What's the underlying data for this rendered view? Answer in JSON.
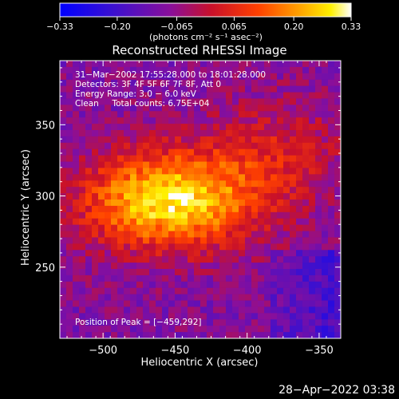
{
  "chart_data": {
    "type": "heatmap",
    "title": "Reconstructed RHESSI Image",
    "xlabel": "Heliocentric X (arcsec)",
    "ylabel": "Heliocentric Y (arcsec)",
    "xlim": [
      -530,
      -335
    ],
    "ylim": [
      200,
      395
    ],
    "xticks": [
      -500,
      -450,
      -400,
      -350
    ],
    "xtick_labels": [
      "−500",
      "−450",
      "−400",
      "−350"
    ],
    "yticks": [
      250,
      300,
      350
    ],
    "ytick_labels": [
      "250",
      "300",
      "350"
    ],
    "colorbar": {
      "min": -0.33,
      "max": 0.33,
      "ticks": [
        -0.33,
        -0.2,
        -0.065,
        0.065,
        0.2,
        0.33
      ],
      "tick_labels": [
        "−0.33",
        "−0.20",
        "−0.065",
        "0.065",
        "0.20",
        "0.33"
      ],
      "label": "(photons cm⁻² s⁻¹ asec⁻²)",
      "colormap": "blue-purple-red-orange-yellow-white"
    },
    "annotations": [
      "31−Mar−2002 17:55:28.000 to 18:01:28.000",
      "Detectors: 3F 4F 5F 6F 7F 8F, Att 0",
      "Energy Range: 3.0 − 6.0 keV",
      "Clean     Total counts: 6.75E+04"
    ],
    "peak_label": "Position of Peak = [−459,292]",
    "peak": {
      "x": -459,
      "y": 292
    },
    "source": {
      "center_x": -455,
      "center_y": 297,
      "spread_x": 42,
      "spread_y": 24
    }
  },
  "footer": {
    "timestamp": "28−Apr−2022 03:38"
  },
  "colors": {
    "background": "#000000",
    "axes": "#ffffff"
  }
}
